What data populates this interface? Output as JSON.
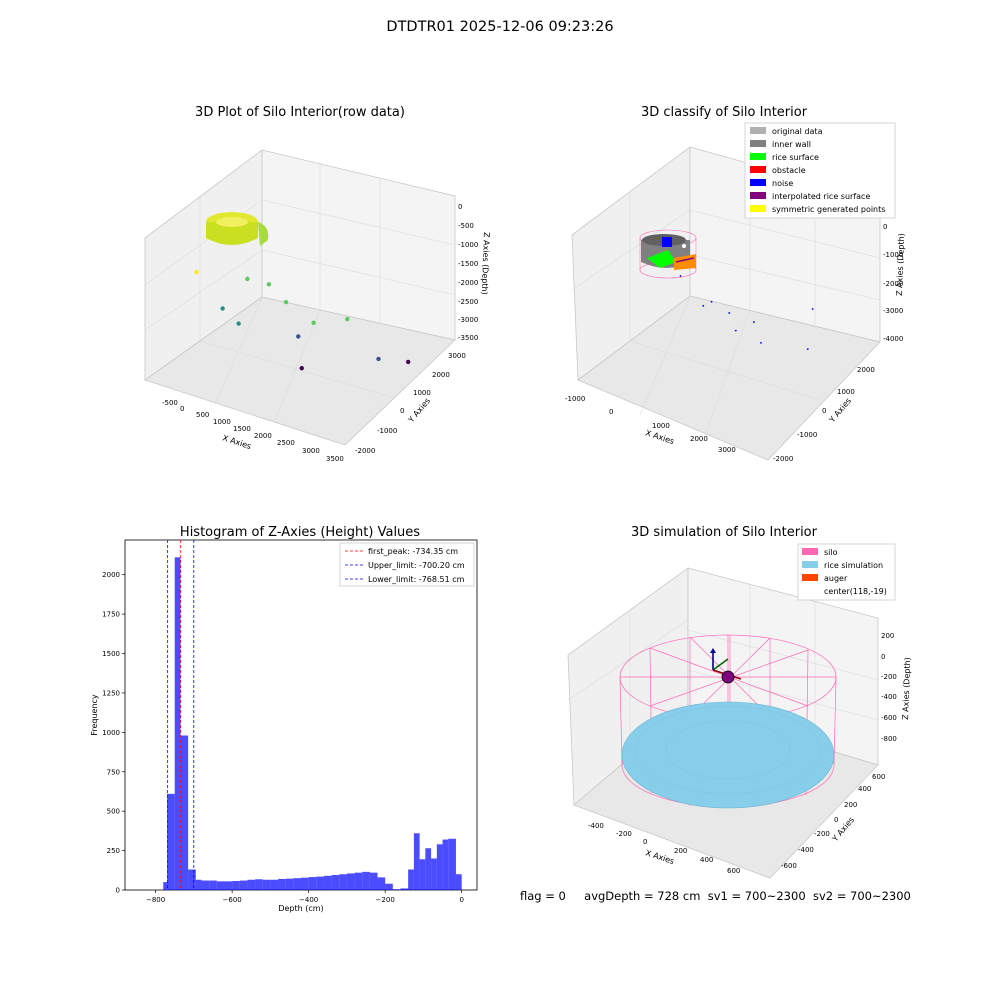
{
  "figure": {
    "title": "DTDTR01 2025-12-06 09:23:26",
    "status": {
      "flag": "flag = 0",
      "avg_depth": "avgDepth = 728 cm",
      "sv1": "sv1 = 700~2300",
      "sv2": "sv2 = 700~2300"
    }
  },
  "chart_data": [
    {
      "type": "scatter",
      "title": "3D Plot of Silo Interior(row data)",
      "xlabel": "X Axies",
      "ylabel": "Y Axies",
      "zlabel": "Z Axies (Depth)",
      "x_ticks": [
        "-500",
        "0",
        "500",
        "1000",
        "1500",
        "2000",
        "2500",
        "3000",
        "3500"
      ],
      "y_ticks": [
        "-2000",
        "-1000",
        "0",
        "1000",
        "2000",
        "3000"
      ],
      "z_ticks": [
        "0",
        "-500",
        "-1000",
        "-1500",
        "-2000",
        "-2500",
        "-3000",
        "-3500"
      ],
      "colormap": [
        "#fde725",
        "#5ec962",
        "#21918c",
        "#3b528b",
        "#440154"
      ],
      "points": [
        {
          "x": 100,
          "y": -1500,
          "z": -700
        },
        {
          "x": 800,
          "y": -600,
          "z": -900
        },
        {
          "x": 1000,
          "y": 0,
          "z": -1200
        },
        {
          "x": 1500,
          "y": -300,
          "z": -1300
        },
        {
          "x": 2400,
          "y": -1000,
          "z": -1100
        },
        {
          "x": 2600,
          "y": 200,
          "z": -1400
        },
        {
          "x": 400,
          "y": -900,
          "z": -1800
        },
        {
          "x": 700,
          "y": -800,
          "z": -2100
        },
        {
          "x": 1500,
          "y": 300,
          "z": -2500
        },
        {
          "x": 2700,
          "y": 1500,
          "z": -3000
        },
        {
          "x": 2900,
          "y": 2500,
          "z": -3400
        },
        {
          "x": 1400,
          "y": 700,
          "z": -3600
        }
      ]
    },
    {
      "type": "scatter",
      "title": "3D classify of Silo Interior",
      "xlabel": "X Axies",
      "ylabel": "Y Axies",
      "zlabel": "Z Axies (Depth)",
      "x_ticks": [
        "-1000",
        "0",
        "1000",
        "2000",
        "3000"
      ],
      "y_ticks": [
        "-2000",
        "-1000",
        "0",
        "1000",
        "2000"
      ],
      "z_ticks": [
        "0",
        "-1000",
        "-2000",
        "-3000",
        "-4000"
      ],
      "legend_position": "top-right",
      "legend": [
        {
          "label": "original data",
          "color": "#b0b0b0"
        },
        {
          "label": "inner wall",
          "color": "#808080"
        },
        {
          "label": "rice surface",
          "color": "#00ff00"
        },
        {
          "label": "obstacle",
          "color": "#ff0000"
        },
        {
          "label": "noise",
          "color": "#0000ff"
        },
        {
          "label": "interpolated rice surface",
          "color": "#800080"
        },
        {
          "label": "symmetric generated points",
          "color": "#ffff00"
        }
      ],
      "noise_points": [
        {
          "x": 800,
          "y": -1200,
          "z": -400
        },
        {
          "x": 1200,
          "y": -900,
          "z": -1300
        },
        {
          "x": 2300,
          "y": -600,
          "z": -1400
        },
        {
          "x": 2900,
          "y": 900,
          "z": -1500
        },
        {
          "x": 1500,
          "y": -300,
          "z": -1700
        },
        {
          "x": 700,
          "y": 300,
          "z": -2100
        },
        {
          "x": 2600,
          "y": 1200,
          "z": -3100
        },
        {
          "x": 900,
          "y": 1000,
          "z": -3300
        },
        {
          "x": 1300,
          "y": 1400,
          "z": -3700
        }
      ]
    },
    {
      "type": "bar",
      "title": "Histogram of Z-Axies (Height) Values",
      "xlabel": "Depth (cm)",
      "ylabel": "Frequency",
      "xlim": [
        -880,
        40
      ],
      "ylim": [
        0,
        2220
      ],
      "x_ticks": [
        "-800",
        "-600",
        "-400",
        "-200",
        "0"
      ],
      "y_ticks": [
        "0",
        "250",
        "500",
        "750",
        "1000",
        "1250",
        "1500",
        "1750",
        "2000"
      ],
      "bar_color": "#0000ff",
      "bins": [
        [
          -780,
          -770,
          50
        ],
        [
          -770,
          -750,
          610
        ],
        [
          -750,
          -735,
          2110
        ],
        [
          -735,
          -715,
          980
        ],
        [
          -715,
          -695,
          130
        ],
        [
          -695,
          -680,
          65
        ],
        [
          -680,
          -660,
          60
        ],
        [
          -660,
          -640,
          60
        ],
        [
          -640,
          -620,
          55
        ],
        [
          -620,
          -600,
          55
        ],
        [
          -600,
          -580,
          57
        ],
        [
          -580,
          -560,
          60
        ],
        [
          -560,
          -540,
          65
        ],
        [
          -540,
          -520,
          68
        ],
        [
          -520,
          -500,
          65
        ],
        [
          -500,
          -480,
          65
        ],
        [
          -480,
          -460,
          70
        ],
        [
          -460,
          -440,
          72
        ],
        [
          -440,
          -420,
          75
        ],
        [
          -420,
          -400,
          78
        ],
        [
          -400,
          -380,
          82
        ],
        [
          -380,
          -360,
          85
        ],
        [
          -360,
          -340,
          90
        ],
        [
          -340,
          -320,
          95
        ],
        [
          -320,
          -300,
          100
        ],
        [
          -300,
          -280,
          105
        ],
        [
          -280,
          -260,
          110
        ],
        [
          -260,
          -240,
          115
        ],
        [
          -240,
          -220,
          110
        ],
        [
          -220,
          -200,
          80
        ],
        [
          -200,
          -180,
          40
        ],
        [
          -180,
          -160,
          5
        ],
        [
          -160,
          -140,
          10
        ],
        [
          -140,
          -125,
          130
        ],
        [
          -125,
          -110,
          360
        ],
        [
          -110,
          -95,
          195
        ],
        [
          -95,
          -80,
          265
        ],
        [
          -80,
          -65,
          200
        ],
        [
          -65,
          -50,
          290
        ],
        [
          -50,
          -35,
          320
        ],
        [
          -35,
          -15,
          325
        ],
        [
          -15,
          0,
          100
        ]
      ],
      "lines": [
        {
          "label": "first_peak: -734.35 cm",
          "value": -734.35,
          "color": "#ff0000"
        },
        {
          "label": "Upper_limit: -700.20 cm",
          "value": -700.2,
          "color": "#0000ff"
        },
        {
          "label": "Lower_limit: -768.51 cm",
          "value": -768.51,
          "color": "#0000ff"
        }
      ],
      "legend_position": "top-right"
    },
    {
      "type": "scatter",
      "title": "3D simulation of Silo Interior",
      "xlabel": "X Axies",
      "ylabel": "Y Axies",
      "zlabel": "Z Axies (Depth)",
      "x_ticks": [
        "-400",
        "-200",
        "0",
        "200",
        "400",
        "600"
      ],
      "y_ticks": [
        "-600",
        "-400",
        "-200",
        "0",
        "200",
        "400",
        "600"
      ],
      "z_ticks": [
        "200",
        "0",
        "-200",
        "-400",
        "-600",
        "-800"
      ],
      "legend_position": "top-right",
      "legend": [
        {
          "label": "silo",
          "color": "#ff69b4"
        },
        {
          "label": "rice simulation",
          "color": "#87ceeb"
        },
        {
          "label": "auger",
          "color": "#ff4500"
        },
        {
          "label": "center(118,-19)",
          "color": ""
        }
      ]
    }
  ]
}
